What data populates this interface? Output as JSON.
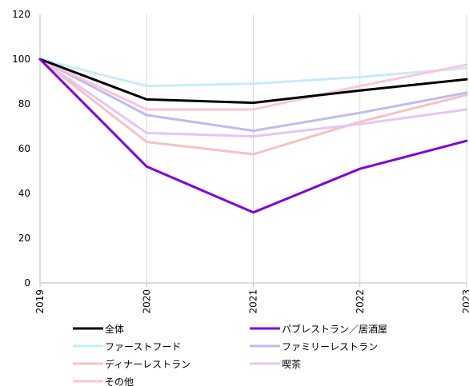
{
  "chart_data": {
    "type": "line",
    "title": "",
    "xlabel": "",
    "ylabel": "",
    "x": [
      "2019",
      "2020",
      "2021",
      "2022",
      "2023"
    ],
    "ylim": [
      0,
      120
    ],
    "yticks": [
      "0",
      "20",
      "40",
      "60",
      "80",
      "100",
      "120"
    ],
    "grid": "vertical",
    "legend_position": "bottom",
    "series": [
      {
        "name": "全体",
        "color": "#000000",
        "width": 3,
        "values": [
          100,
          82,
          80.5,
          86,
          91
        ]
      },
      {
        "name": "パブレストラン／居酒屋",
        "color": "#7f00e0",
        "width": 3,
        "values": [
          100,
          52,
          31.5,
          51,
          63.5
        ]
      },
      {
        "name": "ファーストフード",
        "color": "#c6ecfa",
        "width": 3,
        "values": [
          100,
          88,
          89,
          92,
          96
        ]
      },
      {
        "name": "ファミリーレストラン",
        "color": "#bcbcf2",
        "width": 3,
        "values": [
          100,
          75,
          68,
          76,
          85
        ]
      },
      {
        "name": "ディナーレストラン",
        "color": "#f7c1c1",
        "width": 3,
        "values": [
          100,
          63,
          57.5,
          72,
          84
        ]
      },
      {
        "name": "喫茶",
        "color": "#e4c6f4",
        "width": 3,
        "values": [
          100,
          67,
          65.5,
          71,
          77.5
        ]
      },
      {
        "name": "その他",
        "color": "#fbc5dc",
        "width": 3,
        "values": [
          100,
          77.5,
          77.5,
          88,
          97.5
        ]
      }
    ]
  }
}
